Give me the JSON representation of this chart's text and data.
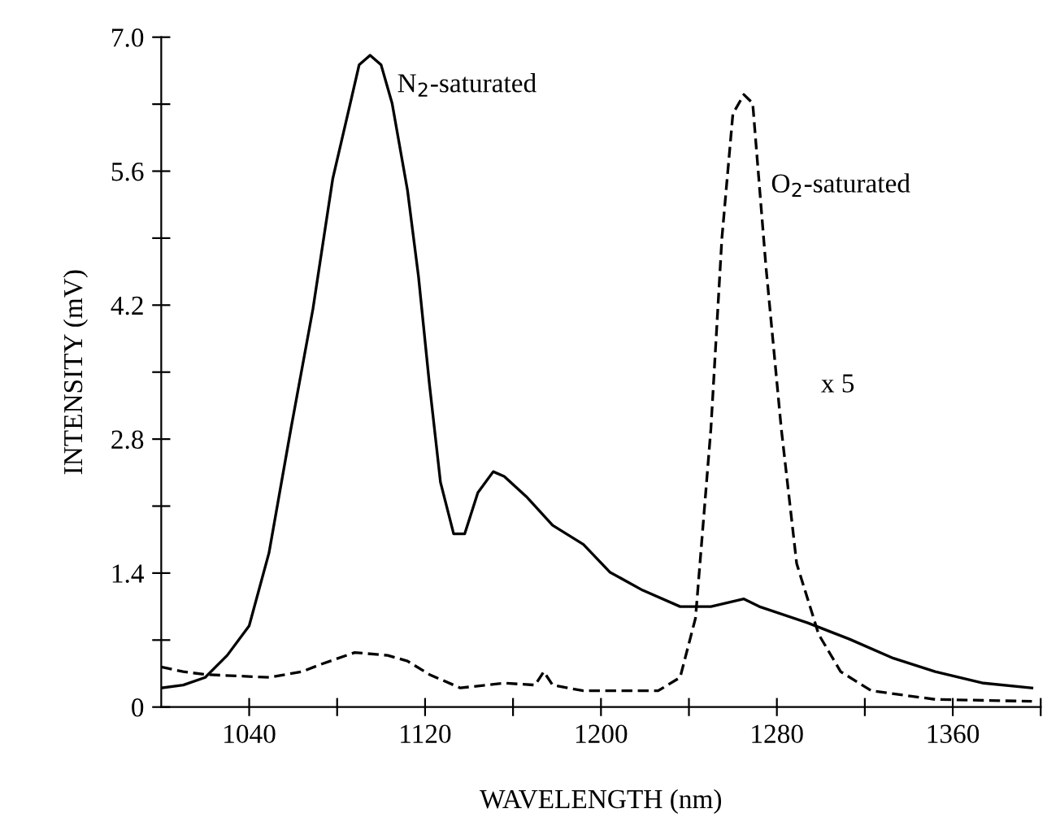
{
  "chart_data": {
    "type": "line",
    "xlabel": "WAVELENGTH (nm)",
    "ylabel": "INTENSITY (mV)",
    "xlim": [
      1000,
      1400
    ],
    "ylim": [
      0,
      7.0
    ],
    "xticks": [
      1040,
      {
        "value": 1080,
        "label": null
      },
      1120,
      {
        "value": 1160,
        "label": null
      },
      1200,
      {
        "value": 1240,
        "label": null
      },
      1280,
      {
        "value": 1320,
        "label": null
      },
      1360,
      {
        "value": 1400,
        "label": null
      }
    ],
    "yticks": [
      0,
      {
        "value": 0.7,
        "label": null
      },
      1.4,
      {
        "value": 2.1,
        "label": null
      },
      2.8,
      {
        "value": 3.5,
        "label": null
      },
      4.2,
      {
        "value": 4.9,
        "label": null
      },
      5.6,
      {
        "value": 6.3,
        "label": null
      },
      "7.0"
    ],
    "grid": false,
    "legend": false,
    "marker": "none",
    "series": [
      {
        "name": "N$_{2}$-saturated",
        "color": "#000000",
        "line_style": "solid",
        "x": [
          1000,
          1010,
          1020,
          1030,
          1040,
          1049,
          1059,
          1069,
          1078,
          1086,
          1090,
          1095,
          1100,
          1105,
          1112,
          1117,
          1122,
          1127,
          1133,
          1138,
          1144,
          1151,
          1156,
          1166,
          1178,
          1192,
          1204,
          1219,
          1236,
          1250,
          1265,
          1272,
          1294,
          1313,
          1333,
          1352,
          1374,
          1396
        ],
        "values": [
          0.2,
          0.23,
          0.31,
          0.54,
          0.85,
          1.61,
          2.91,
          4.16,
          5.52,
          6.31,
          6.71,
          6.81,
          6.71,
          6.31,
          5.4,
          4.5,
          3.37,
          2.35,
          1.81,
          1.81,
          2.24,
          2.46,
          2.41,
          2.2,
          1.9,
          1.7,
          1.41,
          1.22,
          1.05,
          1.05,
          1.13,
          1.05,
          0.88,
          0.71,
          0.51,
          0.37,
          0.25,
          0.2
        ]
      },
      {
        "name": "O$_{2}$-saturated",
        "color": "#000000",
        "line_style": "dashed",
        "x": [
          1000,
          1010,
          1020,
          1049,
          1064,
          1073,
          1088,
          1103,
          1112,
          1122,
          1136,
          1156,
          1170,
          1174,
          1178,
          1192,
          1226,
          1236,
          1243,
          1250,
          1255,
          1260,
          1265,
          1269,
          1275,
          1282,
          1289,
          1299,
          1309,
          1323,
          1352,
          1396
        ],
        "values": [
          0.42,
          0.37,
          0.34,
          0.31,
          0.37,
          0.45,
          0.57,
          0.54,
          0.48,
          0.34,
          0.2,
          0.25,
          0.23,
          0.37,
          0.23,
          0.17,
          0.17,
          0.31,
          0.93,
          2.91,
          4.9,
          6.2,
          6.4,
          6.31,
          4.61,
          2.91,
          1.5,
          0.76,
          0.37,
          0.17,
          0.08,
          0.06
        ]
      }
    ],
    "annotations": [
      "x 5"
    ]
  }
}
